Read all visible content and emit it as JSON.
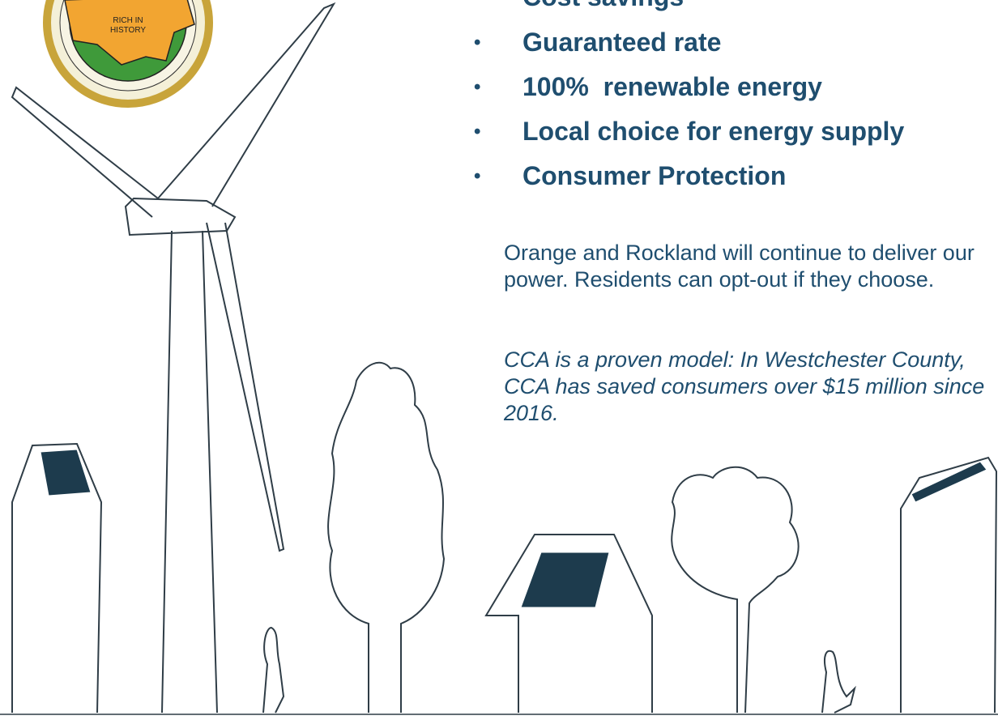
{
  "logo": {
    "lines": [
      "RICH IN",
      "HISTORY"
    ]
  },
  "bullets": [
    "Cost savings",
    "Guaranteed rate",
    "100%  renewable energy",
    "Local choice for energy supply",
    "Consumer Protection"
  ],
  "paragraph": "Orange and Rockland will continue to deliver our power. Residents can opt-out if they choose.",
  "note": "CCA is a proven model: In Westchester County, CCA has saved consumers over $15 million since 2016."
}
